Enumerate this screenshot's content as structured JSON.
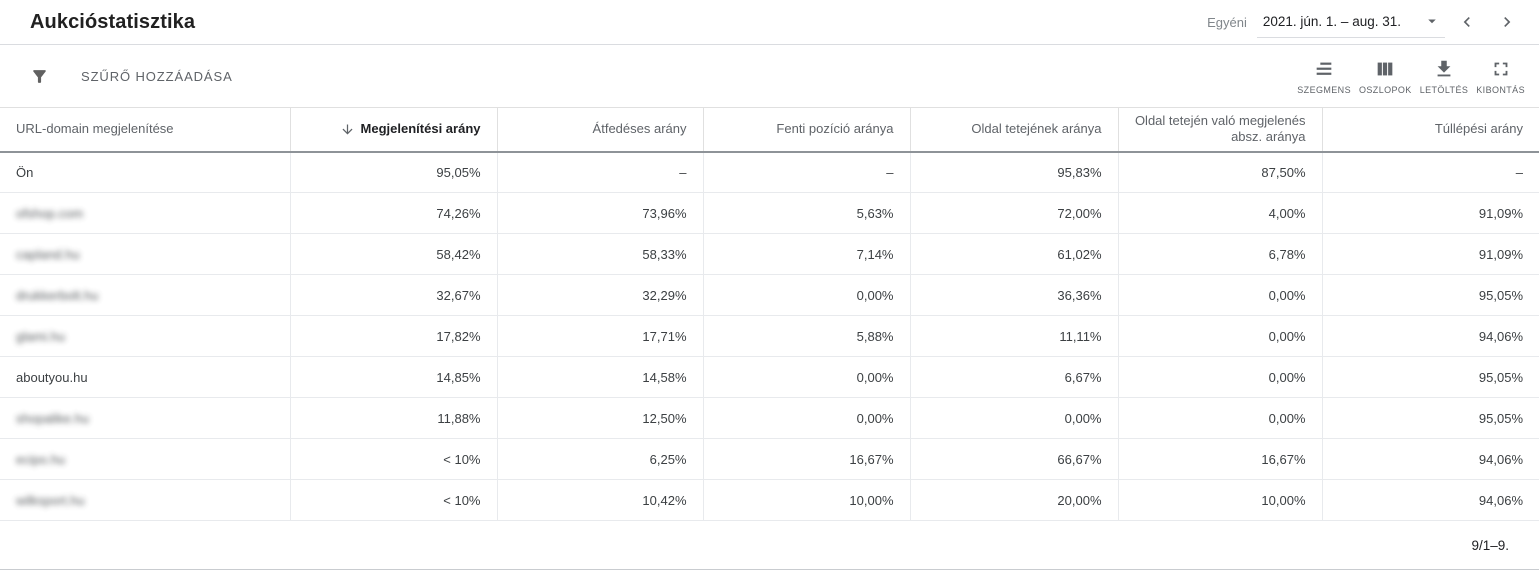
{
  "header": {
    "title": "Aukcióstatisztika",
    "date_range": {
      "preset_label": "Egyéni",
      "value": "2021. jún. 1. – aug. 31."
    }
  },
  "toolbar": {
    "add_filter_label": "SZŰRŐ HOZZÁADÁSA",
    "actions": [
      {
        "label": "SZEGMENS",
        "icon": "segment-icon"
      },
      {
        "label": "OSZLOPOK",
        "icon": "columns-icon"
      },
      {
        "label": "LETÖLTÉS",
        "icon": "download-icon"
      },
      {
        "label": "KIBONTÁS",
        "icon": "expand-icon"
      }
    ]
  },
  "table": {
    "columns": [
      {
        "label": "URL-domain megjelenítése",
        "align": "left",
        "sorted": false
      },
      {
        "label": "Megjelenítési arány",
        "align": "right",
        "sorted": true,
        "sort_direction": "desc"
      },
      {
        "label": "Átfedéses arány",
        "align": "right",
        "sorted": false
      },
      {
        "label": "Fenti pozíció aránya",
        "align": "right",
        "sorted": false
      },
      {
        "label": "Oldal tetejének aránya",
        "align": "right",
        "sorted": false
      },
      {
        "label": "Oldal tetején való megjelenés absz. aránya",
        "align": "right",
        "sorted": false
      },
      {
        "label": "Túllépési arány",
        "align": "right",
        "sorted": false
      }
    ],
    "rows": [
      {
        "domain": "Ön",
        "blurred": false,
        "values": [
          "95,05%",
          "–",
          "–",
          "95,83%",
          "87,50%",
          "–"
        ]
      },
      {
        "domain": "ofshop.com",
        "blurred": true,
        "values": [
          "74,26%",
          "73,96%",
          "5,63%",
          "72,00%",
          "4,00%",
          "91,09%"
        ]
      },
      {
        "domain": "capland.hu",
        "blurred": true,
        "values": [
          "58,42%",
          "58,33%",
          "7,14%",
          "61,02%",
          "6,78%",
          "91,09%"
        ]
      },
      {
        "domain": "drukkerbolt.hu",
        "blurred": true,
        "values": [
          "32,67%",
          "32,29%",
          "0,00%",
          "36,36%",
          "0,00%",
          "95,05%"
        ]
      },
      {
        "domain": "glami.hu",
        "blurred": true,
        "values": [
          "17,82%",
          "17,71%",
          "5,88%",
          "11,11%",
          "0,00%",
          "94,06%"
        ]
      },
      {
        "domain": "aboutyou.hu",
        "blurred": false,
        "values": [
          "14,85%",
          "14,58%",
          "0,00%",
          "6,67%",
          "0,00%",
          "95,05%"
        ]
      },
      {
        "domain": "shopalike.hu",
        "blurred": true,
        "values": [
          "11,88%",
          "12,50%",
          "0,00%",
          "0,00%",
          "0,00%",
          "95,05%"
        ]
      },
      {
        "domain": "ecipo.hu",
        "blurred": true,
        "values": [
          "< 10%",
          "6,25%",
          "16,67%",
          "66,67%",
          "16,67%",
          "94,06%"
        ]
      },
      {
        "domain": "wilksport.hu",
        "blurred": true,
        "values": [
          "< 10%",
          "10,42%",
          "10,00%",
          "20,00%",
          "10,00%",
          "94,06%"
        ]
      }
    ],
    "pagination": "9/1–9."
  },
  "colors": {
    "text_primary": "#202124",
    "text_secondary": "#5f6368",
    "row_border": "#e8eaed",
    "header_border": "#8e9398"
  }
}
